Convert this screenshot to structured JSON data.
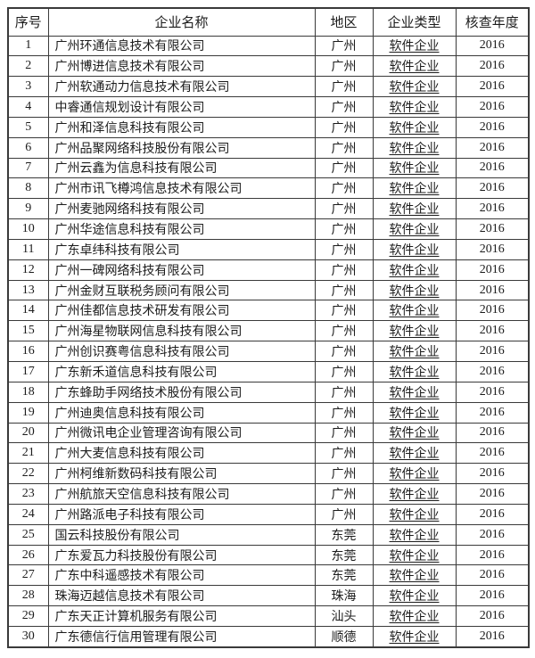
{
  "table": {
    "headers": {
      "no": "序号",
      "name": "企业名称",
      "region": "地区",
      "type": "企业类型",
      "year": "核查年度"
    },
    "rows": [
      {
        "no": "1",
        "name": "广州环通信息技术有限公司",
        "region": "广州",
        "type": "软件企业",
        "year": "2016"
      },
      {
        "no": "2",
        "name": "广州博进信息技术有限公司",
        "region": "广州",
        "type": "软件企业",
        "year": "2016"
      },
      {
        "no": "3",
        "name": "广州软通动力信息技术有限公司",
        "region": "广州",
        "type": "软件企业",
        "year": "2016"
      },
      {
        "no": "4",
        "name": "中睿通信规划设计有限公司",
        "region": "广州",
        "type": "软件企业",
        "year": "2016"
      },
      {
        "no": "5",
        "name": "广州和泽信息科技有限公司",
        "region": "广州",
        "type": "软件企业",
        "year": "2016"
      },
      {
        "no": "6",
        "name": "广州品聚网络科技股份有限公司",
        "region": "广州",
        "type": "软件企业",
        "year": "2016"
      },
      {
        "no": "7",
        "name": "广州云鑫为信息科技有限公司",
        "region": "广州",
        "type": "软件企业",
        "year": "2016"
      },
      {
        "no": "8",
        "name": "广州市讯飞樽鸿信息技术有限公司",
        "region": "广州",
        "type": "软件企业",
        "year": "2016"
      },
      {
        "no": "9",
        "name": "广州麦驰网络科技有限公司",
        "region": "广州",
        "type": "软件企业",
        "year": "2016"
      },
      {
        "no": "10",
        "name": "广州华途信息科技有限公司",
        "region": "广州",
        "type": "软件企业",
        "year": "2016"
      },
      {
        "no": "11",
        "name": "广东卓纬科技有限公司",
        "region": "广州",
        "type": "软件企业",
        "year": "2016"
      },
      {
        "no": "12",
        "name": "广州一碑网络科技有限公司",
        "region": "广州",
        "type": "软件企业",
        "year": "2016"
      },
      {
        "no": "13",
        "name": "广州金财互联税务顾问有限公司",
        "region": "广州",
        "type": "软件企业",
        "year": "2016"
      },
      {
        "no": "14",
        "name": "广州佳都信息技术研发有限公司",
        "region": "广州",
        "type": "软件企业",
        "year": "2016"
      },
      {
        "no": "15",
        "name": "广州海星物联网信息科技有限公司",
        "region": "广州",
        "type": "软件企业",
        "year": "2016"
      },
      {
        "no": "16",
        "name": "广州创识赛粤信息科技有限公司",
        "region": "广州",
        "type": "软件企业",
        "year": "2016"
      },
      {
        "no": "17",
        "name": "广东新禾道信息科技有限公司",
        "region": "广州",
        "type": "软件企业",
        "year": "2016"
      },
      {
        "no": "18",
        "name": "广东蜂助手网络技术股份有限公司",
        "region": "广州",
        "type": "软件企业",
        "year": "2016"
      },
      {
        "no": "19",
        "name": "广州迪奥信息科技有限公司",
        "region": "广州",
        "type": "软件企业",
        "year": "2016"
      },
      {
        "no": "20",
        "name": "广州微讯电企业管理咨询有限公司",
        "region": "广州",
        "type": "软件企业",
        "year": "2016"
      },
      {
        "no": "21",
        "name": "广州大麦信息科技有限公司",
        "region": "广州",
        "type": "软件企业",
        "year": "2016"
      },
      {
        "no": "22",
        "name": "广州柯维新数码科技有限公司",
        "region": "广州",
        "type": "软件企业",
        "year": "2016"
      },
      {
        "no": "23",
        "name": "广州航旅天空信息科技有限公司",
        "region": "广州",
        "type": "软件企业",
        "year": "2016"
      },
      {
        "no": "24",
        "name": "广州路派电子科技有限公司",
        "region": "广州",
        "type": "软件企业",
        "year": "2016"
      },
      {
        "no": "25",
        "name": "国云科技股份有限公司",
        "region": "东莞",
        "type": "软件企业",
        "year": "2016"
      },
      {
        "no": "26",
        "name": "广东爱瓦力科技股份有限公司",
        "region": "东莞",
        "type": "软件企业",
        "year": "2016"
      },
      {
        "no": "27",
        "name": "广东中科遥感技术有限公司",
        "region": "东莞",
        "type": "软件企业",
        "year": "2016"
      },
      {
        "no": "28",
        "name": "珠海迈越信息技术有限公司",
        "region": "珠海",
        "type": "软件企业",
        "year": "2016"
      },
      {
        "no": "29",
        "name": "广东天正计算机服务有限公司",
        "region": "汕头",
        "type": "软件企业",
        "year": "2016"
      },
      {
        "no": "30",
        "name": "广东德信行信用管理有限公司",
        "region": "顺德",
        "type": "软件企业",
        "year": "2016"
      }
    ]
  }
}
